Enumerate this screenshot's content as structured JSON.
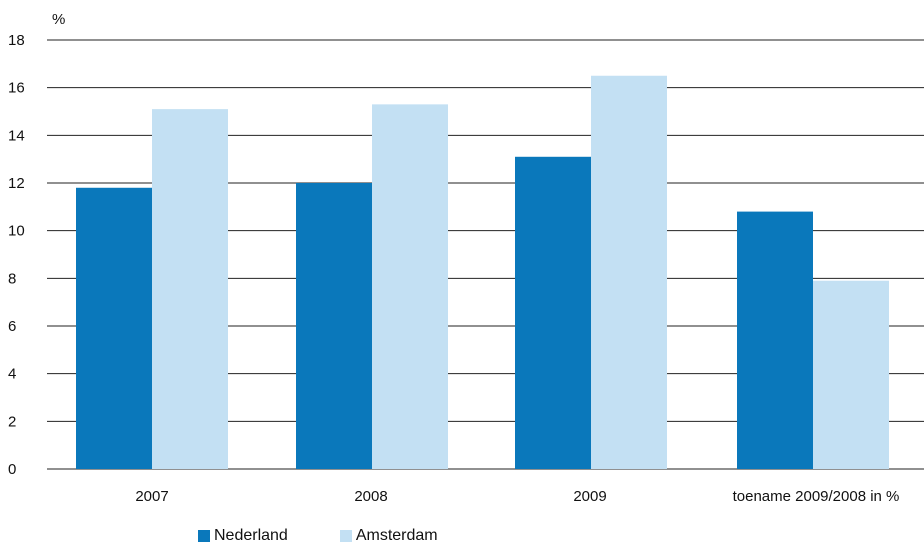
{
  "chart_data": {
    "type": "bar",
    "unit_label": "%",
    "categories": [
      "2007",
      "2008",
      "2009",
      "toename 2009/2008 in %"
    ],
    "series": [
      {
        "name": "Nederland",
        "color": "#0a78bb",
        "values": [
          11.8,
          12.0,
          13.1,
          10.8
        ]
      },
      {
        "name": "Amsterdam",
        "color": "#c3e0f3",
        "values": [
          15.1,
          15.3,
          16.5,
          7.9
        ]
      }
    ],
    "ylim": [
      0,
      18
    ],
    "yticks": [
      0,
      2,
      4,
      6,
      8,
      10,
      12,
      14,
      16,
      18
    ],
    "grid": true,
    "legend_position": "bottom-left"
  }
}
